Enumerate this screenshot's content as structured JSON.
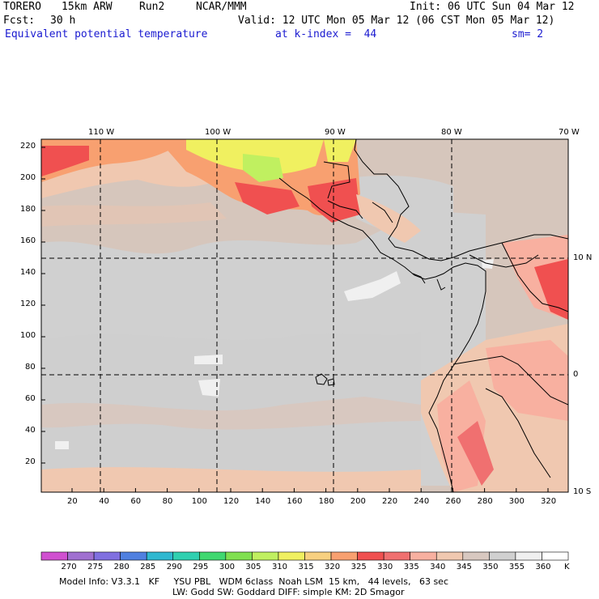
{
  "header": {
    "model": "TORERO",
    "resolution": "15km ARW",
    "run": "Run2",
    "org": "NCAR/MMM",
    "init": "Init: 06 UTC Sun 04 Mar 12",
    "fcst_label": "Fcst:",
    "fcst_value": "30 h",
    "valid": "Valid: 12 UTC Mon 05 Mar 12 (06 CST Mon 05 Mar 12)",
    "field": "Equivalent potential temperature",
    "level": "at k-index =  44",
    "smoothing": "sm= 2"
  },
  "map": {
    "top_lon_labels": [
      "110 W",
      "100 W",
      "90 W",
      "80 W",
      "70 W"
    ],
    "right_lat_labels": [
      "10 N",
      "0",
      "10 S"
    ],
    "y_ticks": [
      "220",
      "200",
      "180",
      "160",
      "140",
      "120",
      "100",
      "80",
      "60",
      "40",
      "20"
    ],
    "x_ticks": [
      "20",
      "40",
      "60",
      "80",
      "100",
      "120",
      "140",
      "160",
      "180",
      "200",
      "220",
      "240",
      "260",
      "280",
      "300",
      "320"
    ]
  },
  "colorbar": {
    "labels": [
      "270",
      "275",
      "280",
      "285",
      "290",
      "295",
      "300",
      "305",
      "310",
      "315",
      "320",
      "325",
      "330",
      "335",
      "340",
      "345",
      "350",
      "355",
      "360"
    ],
    "unit": "K",
    "colors": [
      "#d050d0",
      "#a070d0",
      "#8070e0",
      "#5080e0",
      "#30b8d0",
      "#30d0b0",
      "#40d870",
      "#80e050",
      "#c0f060",
      "#f0f060",
      "#f8d080",
      "#f8a070",
      "#f05050",
      "#f07070",
      "#f8b0a0",
      "#f0c8b0",
      "#d8c8c0",
      "#d0d0d0",
      "#f0f0f0",
      "#ffffff"
    ]
  },
  "footer": {
    "line1": "Model Info: V3.3.1   KF     YSU PBL   WDM 6class  Noah LSM  15 km,   44 levels,   63 sec",
    "line2": "LW: Godd SW: Goddard DIFF: simple KM: 2D Smagor"
  }
}
